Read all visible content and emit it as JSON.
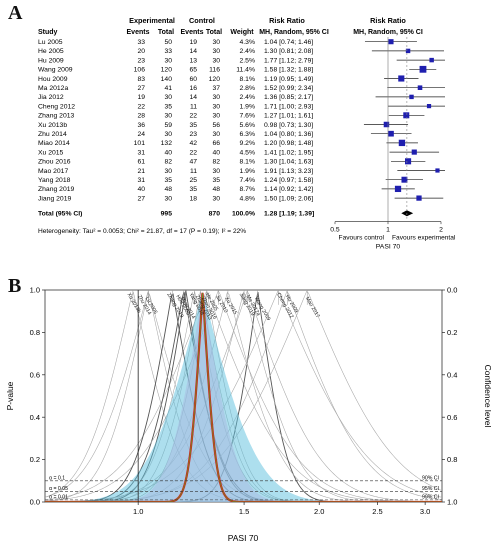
{
  "panel_labels": [
    "A",
    "B"
  ],
  "chart_data": [
    {
      "type": "table",
      "header": {
        "group_experimental": "Experimental",
        "group_control": "Control",
        "risk_ratio": "Risk Ratio",
        "study": "Study",
        "events": "Events",
        "total": "Total",
        "weight": "Weight",
        "method": "MH, Random, 95% CI",
        "plot_title": "Risk Ratio",
        "plot_method": "MH, Random, 95% CI"
      },
      "rows": [
        {
          "study": "Lu 2005",
          "e_events": "33",
          "e_total": "50",
          "c_events": "19",
          "c_total": "30",
          "weight": "4.3%",
          "ci_text": "1.04 [0.74; 1.46]",
          "rr": 1.04,
          "lo": 0.74,
          "hi": 1.46
        },
        {
          "study": "He 2005",
          "e_events": "20",
          "e_total": "33",
          "c_events": "14",
          "c_total": "30",
          "weight": "2.4%",
          "ci_text": "1.30 [0.81; 2.08]",
          "rr": 1.3,
          "lo": 0.81,
          "hi": 2.08
        },
        {
          "study": "Hu 2009",
          "e_events": "23",
          "e_total": "30",
          "c_events": "13",
          "c_total": "30",
          "weight": "2.5%",
          "ci_text": "1.77 [1.12; 2.79]",
          "rr": 1.77,
          "lo": 1.12,
          "hi": 2.79
        },
        {
          "study": "Wang 2009",
          "e_events": "106",
          "e_total": "120",
          "c_events": "65",
          "c_total": "116",
          "weight": "11.4%",
          "ci_text": "1.58 [1.32; 1.88]",
          "rr": 1.58,
          "lo": 1.32,
          "hi": 1.88
        },
        {
          "study": "Hou 2009",
          "e_events": "83",
          "e_total": "140",
          "c_events": "60",
          "c_total": "120",
          "weight": "8.1%",
          "ci_text": "1.19 [0.95; 1.49]",
          "rr": 1.19,
          "lo": 0.95,
          "hi": 1.49
        },
        {
          "study": "Ma 2012a",
          "e_events": "27",
          "e_total": "41",
          "c_events": "16",
          "c_total": "37",
          "weight": "2.8%",
          "ci_text": "1.52 [0.99; 2.34]",
          "rr": 1.52,
          "lo": 0.99,
          "hi": 2.34
        },
        {
          "study": "Jia 2012",
          "e_events": "19",
          "e_total": "30",
          "c_events": "14",
          "c_total": "30",
          "weight": "2.4%",
          "ci_text": "1.36 [0.85; 2.17]",
          "rr": 1.36,
          "lo": 0.85,
          "hi": 2.17
        },
        {
          "study": "Cheng 2012",
          "e_events": "22",
          "e_total": "35",
          "c_events": "11",
          "c_total": "30",
          "weight": "1.9%",
          "ci_text": "1.71 [1.00; 2.93]",
          "rr": 1.71,
          "lo": 1.0,
          "hi": 2.93
        },
        {
          "study": "Zhang 2013",
          "e_events": "28",
          "e_total": "30",
          "c_events": "22",
          "c_total": "30",
          "weight": "7.6%",
          "ci_text": "1.27 [1.01; 1.61]",
          "rr": 1.27,
          "lo": 1.01,
          "hi": 1.61
        },
        {
          "study": "Xu 2013b",
          "e_events": "36",
          "e_total": "59",
          "c_events": "35",
          "c_total": "56",
          "weight": "5.6%",
          "ci_text": "0.98 [0.73; 1.30]",
          "rr": 0.98,
          "lo": 0.73,
          "hi": 1.3
        },
        {
          "study": "Zhu 2014",
          "e_events": "24",
          "e_total": "30",
          "c_events": "23",
          "c_total": "30",
          "weight": "6.3%",
          "ci_text": "1.04 [0.80; 1.36]",
          "rr": 1.04,
          "lo": 0.8,
          "hi": 1.36
        },
        {
          "study": "Miao 2014",
          "e_events": "101",
          "e_total": "132",
          "c_events": "42",
          "c_total": "66",
          "weight": "9.2%",
          "ci_text": "1.20 [0.98; 1.48]",
          "rr": 1.2,
          "lo": 0.98,
          "hi": 1.48
        },
        {
          "study": "Xu 2015",
          "e_events": "31",
          "e_total": "40",
          "c_events": "22",
          "c_total": "40",
          "weight": "4.5%",
          "ci_text": "1.41 [1.02; 1.95]",
          "rr": 1.41,
          "lo": 1.02,
          "hi": 1.95
        },
        {
          "study": "Zhou 2016",
          "e_events": "61",
          "e_total": "82",
          "c_events": "47",
          "c_total": "82",
          "weight": "8.1%",
          "ci_text": "1.30 [1.04; 1.63]",
          "rr": 1.3,
          "lo": 1.04,
          "hi": 1.63
        },
        {
          "study": "Mao 2017",
          "e_events": "21",
          "e_total": "30",
          "c_events": "11",
          "c_total": "30",
          "weight": "1.9%",
          "ci_text": "1.91 [1.13; 3.23]",
          "rr": 1.91,
          "lo": 1.13,
          "hi": 3.23
        },
        {
          "study": "Yang 2018",
          "e_events": "31",
          "e_total": "35",
          "c_events": "25",
          "c_total": "35",
          "weight": "7.4%",
          "ci_text": "1.24 [0.97; 1.58]",
          "rr": 1.24,
          "lo": 0.97,
          "hi": 1.58
        },
        {
          "study": "Zhang 2019",
          "e_events": "40",
          "e_total": "48",
          "c_events": "35",
          "c_total": "48",
          "weight": "8.7%",
          "ci_text": "1.14 [0.92; 1.42]",
          "rr": 1.14,
          "lo": 0.92,
          "hi": 1.42
        },
        {
          "study": "Jiang 2019",
          "e_events": "27",
          "e_total": "30",
          "c_events": "18",
          "c_total": "30",
          "weight": "4.8%",
          "ci_text": "1.50 [1.09; 2.06]",
          "rr": 1.5,
          "lo": 1.09,
          "hi": 2.06
        }
      ],
      "total": {
        "label": "Total (95% CI)",
        "e_total": "995",
        "c_total": "870",
        "weight": "100.0%",
        "ci_text": "1.28 [1.19; 1.39]",
        "rr": 1.28,
        "lo": 1.19,
        "hi": 1.39
      },
      "heterogeneity": "Heterogeneity: Tau² = 0.0053; Chi² = 21.87, df = 17 (P = 0.19); I² = 22%",
      "x_ticks": [
        "0.5",
        "1",
        "2"
      ],
      "x_scale": "log",
      "xlim": [
        0.5,
        2
      ],
      "favours_left": "Favours control",
      "favours_right": "Favours experimental",
      "xlabel": "PASI 70",
      "marker_color": "#1f1faf",
      "diamond_color": "#000000"
    },
    {
      "type": "line",
      "ylabel": "P-value",
      "ylabel_right": "Confidence level",
      "xlabel": "PASI 70",
      "x_ticks": [
        "1.0",
        "1.5",
        "2.0",
        "2.5",
        "3.0"
      ],
      "y_ticks": [
        "0.0",
        "0.2",
        "0.4",
        "0.6",
        "0.8",
        "1.0"
      ],
      "y_ticks_right": [
        "0.0",
        "0.2",
        "0.4",
        "0.6",
        "0.8",
        "1.0"
      ],
      "xlim": [
        0.7,
        3.2
      ],
      "ylim": [
        0,
        1
      ],
      "x_scale": "log",
      "ref_lines": [
        {
          "alpha": 0.1,
          "label_left": "α = 0.1",
          "label_right": "90% CI"
        },
        {
          "alpha": 0.05,
          "label_left": "α = 0.05",
          "label_right": "95% CI"
        },
        {
          "alpha": 0.01,
          "label_left": "α = 0.01",
          "label_right": "99% CI"
        }
      ],
      "study_curve_labels": [
        "Xu 2013b",
        "Zhu 2014",
        "Lu 2005",
        "Zhang 2019",
        "Hou 2009",
        "Miao 2014",
        "Yang 2018",
        "Zhang 2013",
        "Zhou 2016",
        "He 2005",
        "Jia 2012",
        "Xu 2015",
        "Jiang 2019",
        "Ma 2012a",
        "Wang 2009",
        "Cheng 2012",
        "Hu 2009",
        "Mao 2017"
      ],
      "pooled_estimate": 1.28,
      "pooled_ci": [
        1.19,
        1.39
      ],
      "colors": {
        "pooled_curve": "#cc2a1e",
        "pooled_fill": "#5bc0de",
        "pink_fill": "#f3b7e3",
        "study_curve": "#a6a6a6",
        "bold_study_curve": "#555555",
        "pooled_inner_line": "#6b8e23"
      }
    }
  ]
}
